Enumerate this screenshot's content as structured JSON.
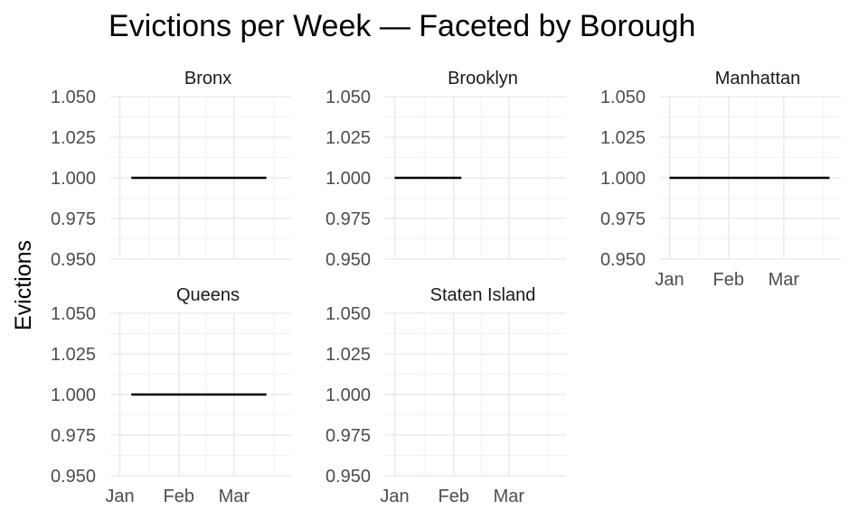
{
  "chart_data": {
    "type": "line",
    "title": "Evictions per Week — Faceted by Borough",
    "xlabel": "",
    "ylabel": "Evictions",
    "ylim": [
      0.95,
      1.05
    ],
    "y_ticks": [
      "1.050",
      "1.025",
      "1.000",
      "0.975",
      "0.950"
    ],
    "x_ticks": [
      "Jan",
      "Feb",
      "Mar"
    ],
    "grid": true,
    "facets": [
      {
        "label": "Bronx",
        "x": [
          "Jan 07",
          "Mar 18"
        ],
        "y": [
          1,
          1
        ]
      },
      {
        "label": "Brooklyn",
        "x": [
          "Jan 01",
          "Feb 05"
        ],
        "y": [
          1,
          1
        ]
      },
      {
        "label": "Manhattan",
        "x": [
          "Jan 01",
          "Mar 25"
        ],
        "y": [
          1,
          1
        ]
      },
      {
        "label": "Queens",
        "x": [
          "Jan 07",
          "Mar 18"
        ],
        "y": [
          1,
          1
        ]
      },
      {
        "label": "Staten Island",
        "x": [],
        "y": []
      }
    ]
  }
}
